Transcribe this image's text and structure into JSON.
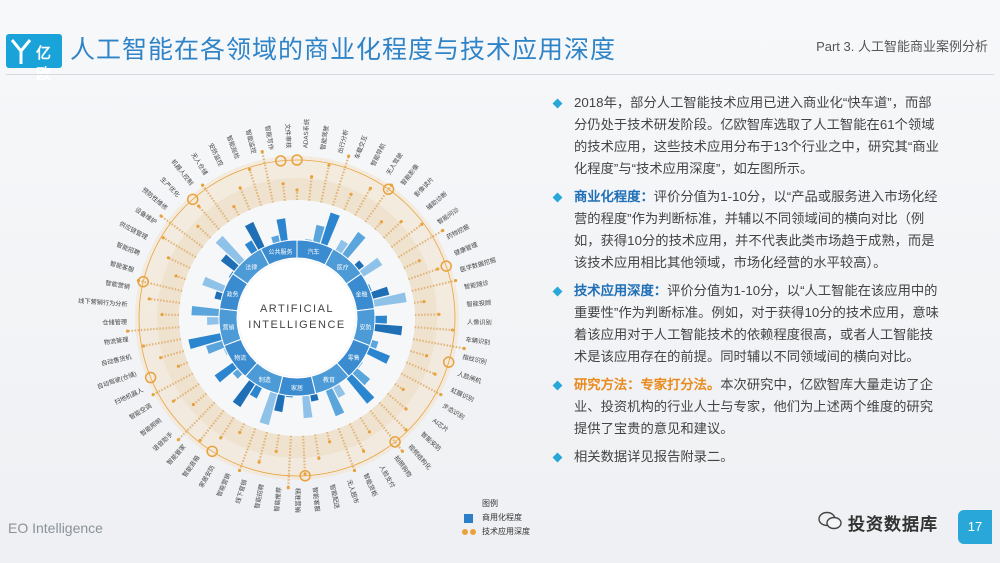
{
  "header": {
    "logo_text": "亿欧",
    "title": "人工智能在各领域的商业化程度与技术应用深度",
    "section": "Part 3. 人工智能商业案例分析"
  },
  "chart": {
    "center_line1": "ARTIFICIAL",
    "center_line2": "INTELLIGENCE",
    "legend_title": "图例",
    "legend_commerce": "商用化程度",
    "legend_tech": "技术应用深度",
    "industries": [
      "汽车",
      "医疗",
      "金融",
      "安防",
      "零售",
      "教育",
      "家居",
      "制造",
      "物流",
      "营销",
      "政务",
      "法律",
      "公共服务"
    ],
    "fields": [
      "ADAS系统",
      "智能驾驶",
      "出行分析",
      "车载交互",
      "智能导航",
      "无人驾驶",
      "智能影像",
      "影像读片",
      "辅助诊断",
      "智能问诊",
      "药物挖掘",
      "健康管理",
      "医学数据挖掘",
      "智能随诊",
      "智能投顾",
      "人像识别",
      "车辆识别",
      "指纹识别",
      "人脸闸机",
      "虹膜识别",
      "步态识别",
      "AI芯片",
      "智能安防",
      "视频结构化",
      "拍照购物",
      "人脸支付",
      "智能货柜",
      "无人超市",
      "智能配送",
      "智能客服",
      "精准营销",
      "智能推荐",
      "智能招聘",
      "线下营销",
      "智能营销",
      "家居安防",
      "智能音箱",
      "智能管家",
      "语音助手",
      "智能照明",
      "智能空调",
      "扫地机器人",
      "自动驾驶(仓储)",
      "自动售货机",
      "物流管理",
      "仓储管理",
      "线下营销行为分析",
      "智能营销",
      "智能客服",
      "智能招聘",
      "供应链管理",
      "设备维护",
      "预防性维修",
      "生产优化",
      "机器人控制",
      "无人仓储",
      "安防监控",
      "智能巡检",
      "智能监控",
      "智能写作",
      "文件审核"
    ]
  },
  "bullets": [
    {
      "head": "",
      "text": "2018年，部分人工智能技术应用已进入商业化“快车道”，而部分仍处于技术研发阶段。亿欧智库选取了人工智能在61个领域的技术应用，这些技术应用分布于13个行业之中，研究其“商业化程度”与“技术应用深度”，如左图所示。"
    },
    {
      "head": "商业化程度：",
      "text": "评价分值为1-10分，以“产品或服务进入市场化经营的程度”作为判断标准，并辅以不同领域间的横向对比（例如，获得10分的技术应用，并不代表此类市场趋于成熟，而是该技术应用相比其他领域，市场化经营的水平较高）。"
    },
    {
      "head": "技术应用深度：",
      "text": "评价分值为1-10分，以“人工智能在该应用中的重要性”作为判断标准。例如，对于获得10分的技术应用，意味着该应用对于人工智能技术的依赖程度很高，或者人工智能技术是该应用存在的前提。同时辅以不同领域间的横向对比。"
    },
    {
      "head": "研究方法：专家打分法。",
      "text": "本次研究中，亿欧智库大量走访了企业、投资机构的行业人士与专家，他们为上述两个维度的研究提供了宝贵的意见和建议。"
    },
    {
      "head": "",
      "text": "相关数据详见报告附录二。"
    }
  ],
  "footer": {
    "left": "EO Intelligence",
    "brand": "投资数据库",
    "page": "17"
  },
  "colors": {
    "accent": "#2aa7d9",
    "title": "#2f83c7",
    "orange": "#e9a23b"
  }
}
